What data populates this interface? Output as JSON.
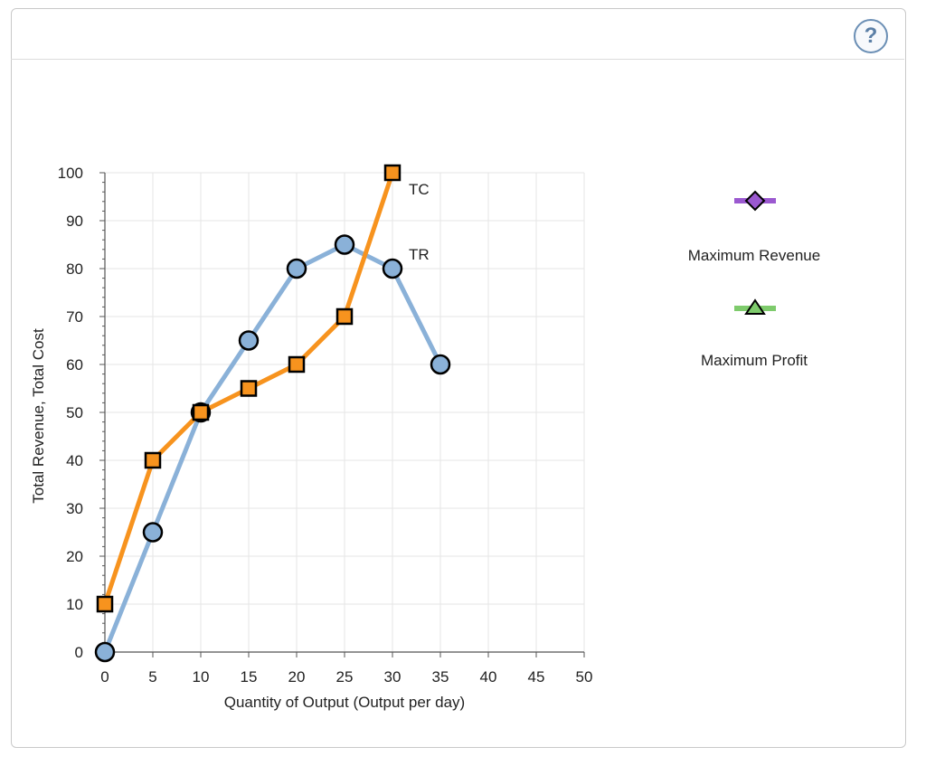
{
  "help": {
    "label": "?"
  },
  "chart_data": {
    "type": "line",
    "title": "",
    "xlabel": "Quantity of Output (Output per day)",
    "ylabel": "Total Revenue, Total Cost",
    "xlim": [
      0,
      50
    ],
    "ylim": [
      0,
      100
    ],
    "xticks": [
      0,
      5,
      10,
      15,
      20,
      25,
      30,
      35,
      40,
      45,
      50
    ],
    "yticks": [
      0,
      10,
      20,
      30,
      40,
      50,
      60,
      70,
      80,
      90,
      100
    ],
    "grid": true,
    "series": [
      {
        "name": "TR",
        "marker": "circle",
        "color": "#8ab1d8",
        "fill": "#8ab1d8",
        "x": [
          0,
          5,
          10,
          15,
          20,
          25,
          30,
          35
        ],
        "y": [
          0,
          25,
          50,
          65,
          80,
          85,
          80,
          60
        ]
      },
      {
        "name": "TC",
        "marker": "square",
        "color": "#f7931e",
        "fill": "#f7931e",
        "x": [
          0,
          5,
          10,
          15,
          20,
          25,
          30
        ],
        "y": [
          10,
          40,
          50,
          55,
          60,
          70,
          100
        ]
      }
    ]
  },
  "legend": {
    "max_revenue": {
      "label": "Maximum Revenue",
      "color": "#9b59d0"
    },
    "max_profit": {
      "label": "Maximum Profit",
      "color": "#7ecb6c"
    }
  }
}
